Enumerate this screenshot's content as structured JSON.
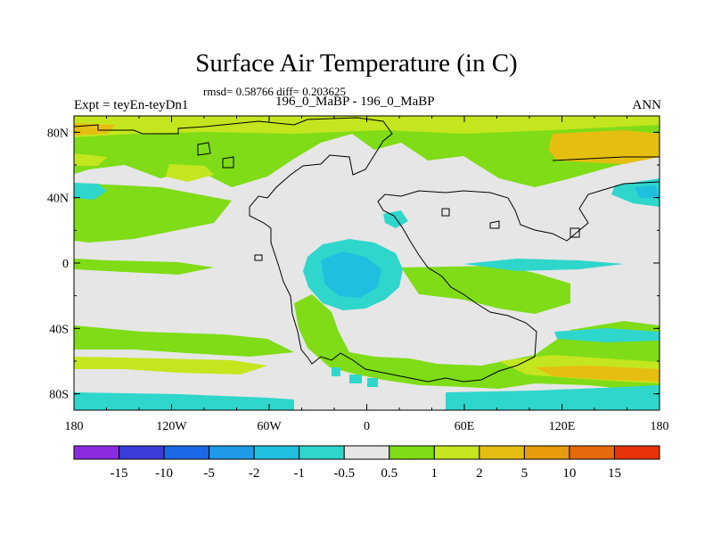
{
  "title": "Surface Air Temperature (in C)",
  "stats_line": "rmsd= 0.58766 diff= 0.203625",
  "experiment_label": "Expt = teyEn-teyDn1",
  "period_label": "196_0_MaBP - 196_0_MaBP",
  "season_label": "ANN",
  "map": {
    "x_ticks": [
      {
        "value": -180,
        "label": "180"
      },
      {
        "value": -120,
        "label": "120W"
      },
      {
        "value": -60,
        "label": "60W"
      },
      {
        "value": 0,
        "label": "0"
      },
      {
        "value": 60,
        "label": "60E"
      },
      {
        "value": 120,
        "label": "120E"
      },
      {
        "value": 180,
        "label": "180"
      }
    ],
    "y_ticks": [
      {
        "value": 80,
        "label": "80N"
      },
      {
        "value": 40,
        "label": "40N"
      },
      {
        "value": 0,
        "label": "0"
      },
      {
        "value": -40,
        "label": "40S"
      },
      {
        "value": -80,
        "label": "80S"
      }
    ],
    "lon_range": [
      -180,
      180
    ],
    "lat_range": [
      -90,
      90
    ]
  },
  "colorbar": {
    "colors": [
      "#8b2be2",
      "#3c3cd8",
      "#1b69e6",
      "#1e9ae6",
      "#20bfe0",
      "#2fd6cc",
      "#e6e6e6",
      "#7fdc16",
      "#c4e61e",
      "#e6be12",
      "#e69a0c",
      "#e6690a",
      "#e6330a"
    ],
    "labels": [
      "-15",
      "-10",
      "-5",
      "-2",
      "-1",
      "-0.5",
      "0.5",
      "1",
      "2",
      "5",
      "10",
      "15"
    ]
  }
}
